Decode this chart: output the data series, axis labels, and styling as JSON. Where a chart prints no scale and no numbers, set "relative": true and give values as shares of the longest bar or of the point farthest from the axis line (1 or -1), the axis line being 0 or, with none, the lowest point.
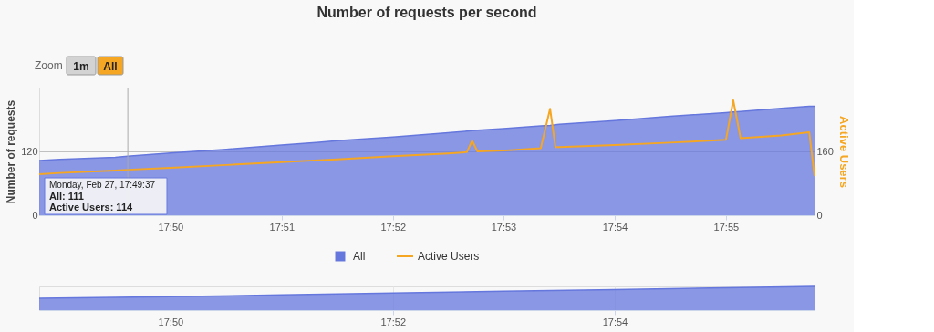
{
  "chart_data": [
    {
      "type": "area",
      "title": "Number of requests per second",
      "ylabel": "Number of requests",
      "y2label": "Active Users",
      "x": [
        17.8136,
        17.8167,
        17.825,
        17.8269,
        17.8333,
        17.8417,
        17.85,
        17.8556,
        17.8583,
        17.8667,
        17.875,
        17.8778,
        17.8786,
        17.8794,
        17.8833,
        17.8889,
        17.8903,
        17.8911,
        17.8917,
        17.9,
        17.9083,
        17.9167,
        17.9178,
        17.9189,
        17.925,
        17.9292,
        17.93
      ],
      "series": [
        {
          "name": "All",
          "type": "area",
          "color": "#6577dd",
          "values": [
            103,
            105,
            109,
            111,
            117,
            124,
            132,
            137,
            140,
            147,
            155,
            158,
            159,
            160,
            163,
            168,
            169,
            170,
            171,
            178,
            186,
            193,
            194,
            195,
            201,
            205,
            205
          ]
        },
        {
          "name": "Active Users",
          "type": "line",
          "axis": "y2",
          "color": "#f5a623",
          "values": [
            103,
            106,
            112,
            114,
            119,
            126,
            133,
            138,
            140,
            148,
            155,
            158,
            187,
            160,
            162,
            168,
            267,
            171,
            171,
            176,
            182,
            189,
            288,
            193,
            200,
            208,
            98
          ]
        }
      ],
      "xlim": [
        17.8136,
        17.93
      ],
      "xticks": [
        {
          "value": 17.8333,
          "label": "17:50"
        },
        {
          "value": 17.85,
          "label": "17:51"
        },
        {
          "value": 17.8667,
          "label": "17:52"
        },
        {
          "value": 17.8833,
          "label": "17:53"
        },
        {
          "value": 17.9,
          "label": "17:54"
        },
        {
          "value": 17.9167,
          "label": "17:55"
        }
      ],
      "ylim": [
        0,
        240
      ],
      "yticks": [
        0,
        120,
        {
          "value": 240,
          "label": null
        }
      ],
      "y2lim": [
        0,
        320
      ],
      "y2ticks": [
        0,
        160
      ],
      "grid": "y",
      "legend": "bottom",
      "marker": "none",
      "line_style": "solid",
      "ref_lines": [
        {
          "axis": "x",
          "value": 17.8269,
          "color": "#aaaaaa"
        }
      ],
      "annotations": [
        "Zoom",
        "1m",
        "All",
        "Monday, Feb 27, 17:49:37",
        "All: 111",
        "Active Users: 114"
      ]
    },
    {
      "type": "area",
      "relative": true,
      "tick_labels": "x",
      "grid": "x",
      "x": [
        17.8136,
        17.8333,
        17.85,
        17.8667,
        17.8833,
        17.9,
        17.9167,
        17.93
      ],
      "series": [
        {
          "color": "#6577dd",
          "values": [
            0.5,
            0.57,
            0.64,
            0.72,
            0.8,
            0.87,
            0.94,
            1.0
          ]
        }
      ],
      "xlim": [
        17.8136,
        17.93
      ],
      "xticks": [
        {
          "value": 17.8333,
          "label": "17:50"
        },
        {
          "value": 17.8667,
          "label": "17:52"
        },
        {
          "value": 17.9,
          "label": "17:54"
        }
      ]
    }
  ]
}
